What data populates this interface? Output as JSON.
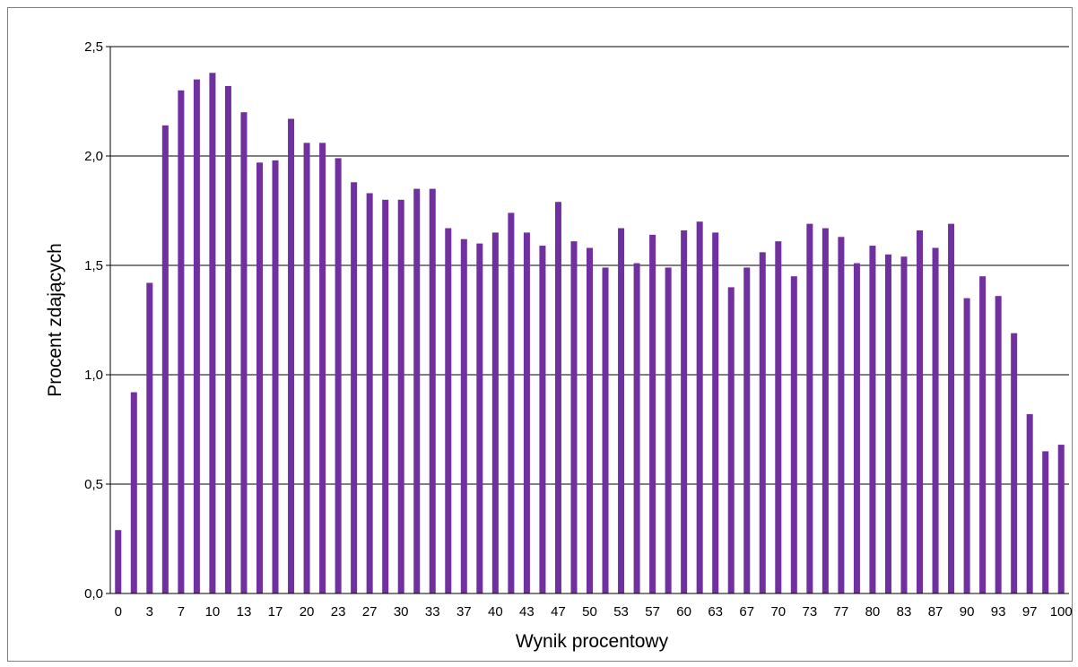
{
  "chart_data": {
    "type": "bar",
    "xlabel": "Wynik procentowy",
    "ylabel": "Procent zdających",
    "ylim": [
      0,
      2.5
    ],
    "yticks": [
      "0,0",
      "0,5",
      "1,0",
      "1,5",
      "2,0",
      "2,5"
    ],
    "grid": "horizontal",
    "legend": "none",
    "bar_color": "#7030a0",
    "x_tick_labels": [
      "0",
      "3",
      "7",
      "10",
      "13",
      "17",
      "20",
      "23",
      "27",
      "30",
      "33",
      "37",
      "40",
      "43",
      "47",
      "50",
      "53",
      "57",
      "60",
      "63",
      "67",
      "70",
      "73",
      "77",
      "80",
      "83",
      "87",
      "90",
      "93",
      "97",
      "100"
    ],
    "values": [
      0.29,
      0.92,
      1.42,
      2.14,
      2.3,
      2.35,
      2.38,
      2.32,
      2.2,
      1.97,
      1.98,
      2.17,
      2.06,
      2.06,
      1.99,
      1.88,
      1.83,
      1.8,
      1.8,
      1.85,
      1.85,
      1.67,
      1.62,
      1.6,
      1.65,
      1.74,
      1.65,
      1.59,
      1.79,
      1.61,
      1.58,
      1.49,
      1.67,
      1.51,
      1.64,
      1.49,
      1.66,
      1.7,
      1.65,
      1.4,
      1.49,
      1.56,
      1.61,
      1.45,
      1.69,
      1.67,
      1.63,
      1.51,
      1.59,
      1.55,
      1.54,
      1.66,
      1.58,
      1.69,
      1.35,
      1.45,
      1.36,
      1.19,
      0.82,
      0.65,
      0.68
    ]
  }
}
